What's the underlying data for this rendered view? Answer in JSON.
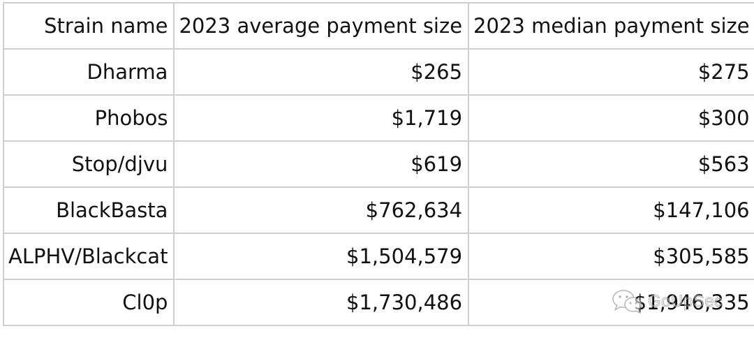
{
  "table": {
    "headers": [
      "Strain name",
      "2023 average payment size",
      "2023 median payment size"
    ],
    "rows": [
      [
        "Dharma",
        "$265",
        "$275"
      ],
      [
        "Phobos",
        "$1,719",
        "$300"
      ],
      [
        "Stop/djvu",
        "$619",
        "$563"
      ],
      [
        "BlackBasta",
        "$762,634",
        "$147,106"
      ],
      [
        "ALPHV/Blackcat",
        "$1,504,579",
        "$305,585"
      ],
      [
        "Cl0p",
        "$1,730,486",
        "$1,946,335"
      ]
    ]
  },
  "watermark": {
    "icon": "wechat-icon",
    "text": "GoUpSec"
  },
  "colors": {
    "grid": "#cfcfcf",
    "text": "#111111"
  }
}
